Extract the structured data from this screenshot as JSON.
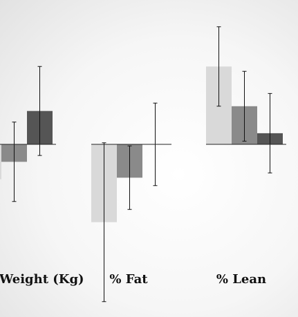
{
  "chart_data": {
    "type": "bar",
    "categories": [
      "Weight (Kg)",
      "% Fat",
      "% Lean"
    ],
    "series": [
      {
        "color": "#d9d9d9",
        "values": [
          -2.2,
          -4.9,
          4.9
        ],
        "err": [
          2.8,
          5.0,
          2.5
        ]
      },
      {
        "color": "#8a8a8a",
        "values": [
          -1.1,
          -2.1,
          2.4
        ],
        "err": [
          2.5,
          2.0,
          2.2
        ]
      },
      {
        "color": "#555555",
        "values": [
          2.1,
          0.0,
          0.7
        ],
        "err": [
          2.8,
          2.6,
          2.5
        ]
      }
    ],
    "ylim": [
      -7.5,
      9.2
    ],
    "grid": false,
    "legend": "none"
  }
}
